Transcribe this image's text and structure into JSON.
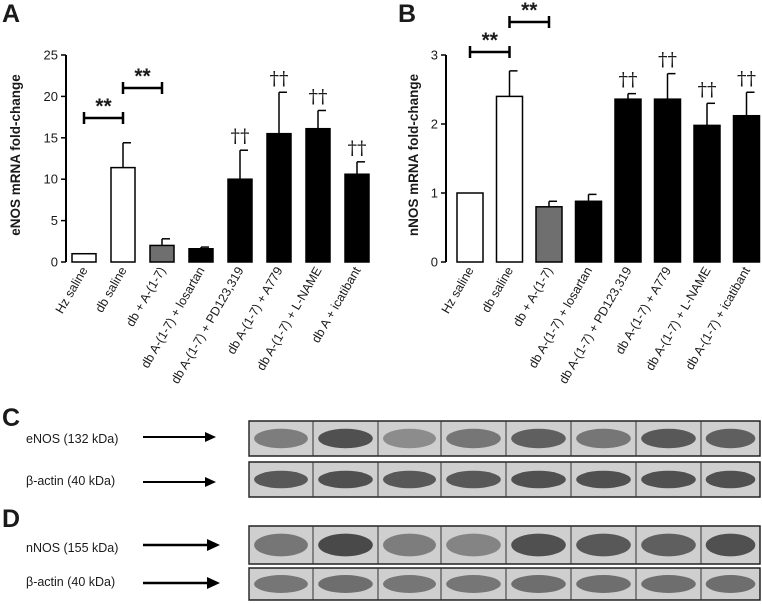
{
  "panel_labels": {
    "a": "A",
    "b": "B",
    "c": "C",
    "d": "D"
  },
  "chart_data": [
    {
      "panel": "A",
      "type": "bar",
      "ylabel": "eNOS mRNA fold-change",
      "ylim": [
        0,
        25
      ],
      "yticks": [
        "0",
        "5",
        "10",
        "15",
        "20",
        "25"
      ],
      "categories": [
        "Hz saline",
        "db saline",
        "db + A-(1-7)",
        "db A-(1-7) + losartan",
        "db A-(1-7) + PD123,319",
        "db A-(1-7) + A779",
        "db A-(1-7) + L-NAME",
        "db A + icatibant"
      ],
      "values": [
        1.0,
        11.4,
        2.0,
        1.6,
        10.0,
        15.5,
        16.1,
        10.6
      ],
      "errors": [
        0.0,
        3.0,
        0.8,
        0.2,
        3.5,
        5.0,
        2.2,
        1.5
      ],
      "fill": [
        "white",
        "white",
        "gray",
        "black",
        "black",
        "black",
        "black",
        "black"
      ],
      "annotations": [
        "",
        "",
        "",
        "",
        "††",
        "††",
        "††",
        "††"
      ],
      "significance": [
        {
          "label": "**",
          "from": 0,
          "to": 1
        },
        {
          "label": "**",
          "from": 1,
          "to": 2
        }
      ]
    },
    {
      "panel": "B",
      "type": "bar",
      "ylabel": "nNOS mRNA fold-change",
      "ylim": [
        0,
        3
      ],
      "yticks": [
        "0",
        "1",
        "2",
        "3"
      ],
      "categories": [
        "Hz saline",
        "db saline",
        "db + A-(1-7)",
        "db A-(1-7) + losartan",
        "db A-(1-7) + PD123,319",
        "db A-(1-7) + A779",
        "db A-(1-7) + L-NAME",
        "db A-(1-7) + icatibant"
      ],
      "values": [
        1.0,
        2.4,
        0.8,
        0.88,
        2.36,
        2.36,
        1.98,
        2.12
      ],
      "errors": [
        0.0,
        0.37,
        0.08,
        0.1,
        0.08,
        0.37,
        0.32,
        0.34
      ],
      "fill": [
        "white",
        "white",
        "gray",
        "black",
        "black",
        "black",
        "black",
        "black"
      ],
      "annotations": [
        "",
        "",
        "",
        "",
        "††",
        "††",
        "††",
        "††"
      ],
      "significance": [
        {
          "label": "**",
          "from": 0,
          "to": 1
        },
        {
          "label": "**",
          "from": 1,
          "to": 2
        }
      ]
    }
  ],
  "blots": {
    "c": {
      "rows": [
        "eNOS (132 kDa)",
        "β-actin (40 kDa)"
      ],
      "lanes": 8
    },
    "d": {
      "rows": [
        "nNOS (155 kDa)",
        "β-actin (40 kDa)"
      ],
      "lanes": 8
    }
  },
  "colors": {
    "white_bar": "#ffffff",
    "gray_bar": "#6f6f6f",
    "black_bar": "#000000",
    "blot_bg": "#cfcfcf",
    "band": "#3a3a3a"
  }
}
